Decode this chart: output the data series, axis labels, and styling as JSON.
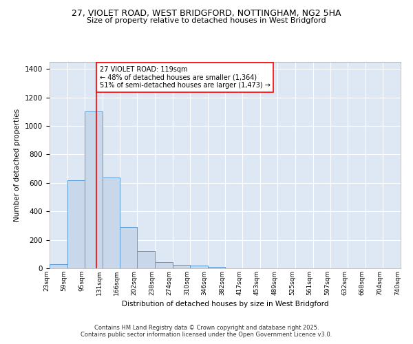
{
  "title_line1": "27, VIOLET ROAD, WEST BRIDGFORD, NOTTINGHAM, NG2 5HA",
  "title_line2": "Size of property relative to detached houses in West Bridgford",
  "xlabel": "Distribution of detached houses by size in West Bridgford",
  "ylabel": "Number of detached properties",
  "bar_left_edges": [
    23,
    59,
    95,
    131,
    166,
    202,
    238,
    274,
    310,
    346,
    382,
    417,
    453,
    489,
    525,
    561,
    597,
    632,
    668,
    704
  ],
  "bar_widths": [
    36,
    36,
    36,
    35,
    36,
    36,
    36,
    36,
    36,
    36,
    35,
    36,
    36,
    36,
    36,
    36,
    35,
    36,
    36,
    36
  ],
  "bar_heights": [
    30,
    620,
    1100,
    640,
    290,
    120,
    45,
    25,
    20,
    10,
    0,
    0,
    0,
    0,
    0,
    0,
    0,
    0,
    0,
    0
  ],
  "bar_face_color": "#c8d8ea",
  "bar_edge_color": "#5b9bd5",
  "tick_labels": [
    "23sqm",
    "59sqm",
    "95sqm",
    "131sqm",
    "166sqm",
    "202sqm",
    "238sqm",
    "274sqm",
    "310sqm",
    "346sqm",
    "382sqm",
    "417sqm",
    "453sqm",
    "489sqm",
    "525sqm",
    "561sqm",
    "597sqm",
    "632sqm",
    "668sqm",
    "704sqm",
    "740sqm"
  ],
  "red_line_x": 119,
  "annotation_text": "27 VIOLET ROAD: 119sqm\n← 48% of detached houses are smaller (1,364)\n51% of semi-detached houses are larger (1,473) →",
  "ylim": [
    0,
    1450
  ],
  "xlim": [
    23,
    740
  ],
  "background_color": "#dde8f4",
  "grid_color": "#ffffff",
  "footer_line1": "Contains HM Land Registry data © Crown copyright and database right 2025.",
  "footer_line2": "Contains public sector information licensed under the Open Government Licence v3.0."
}
